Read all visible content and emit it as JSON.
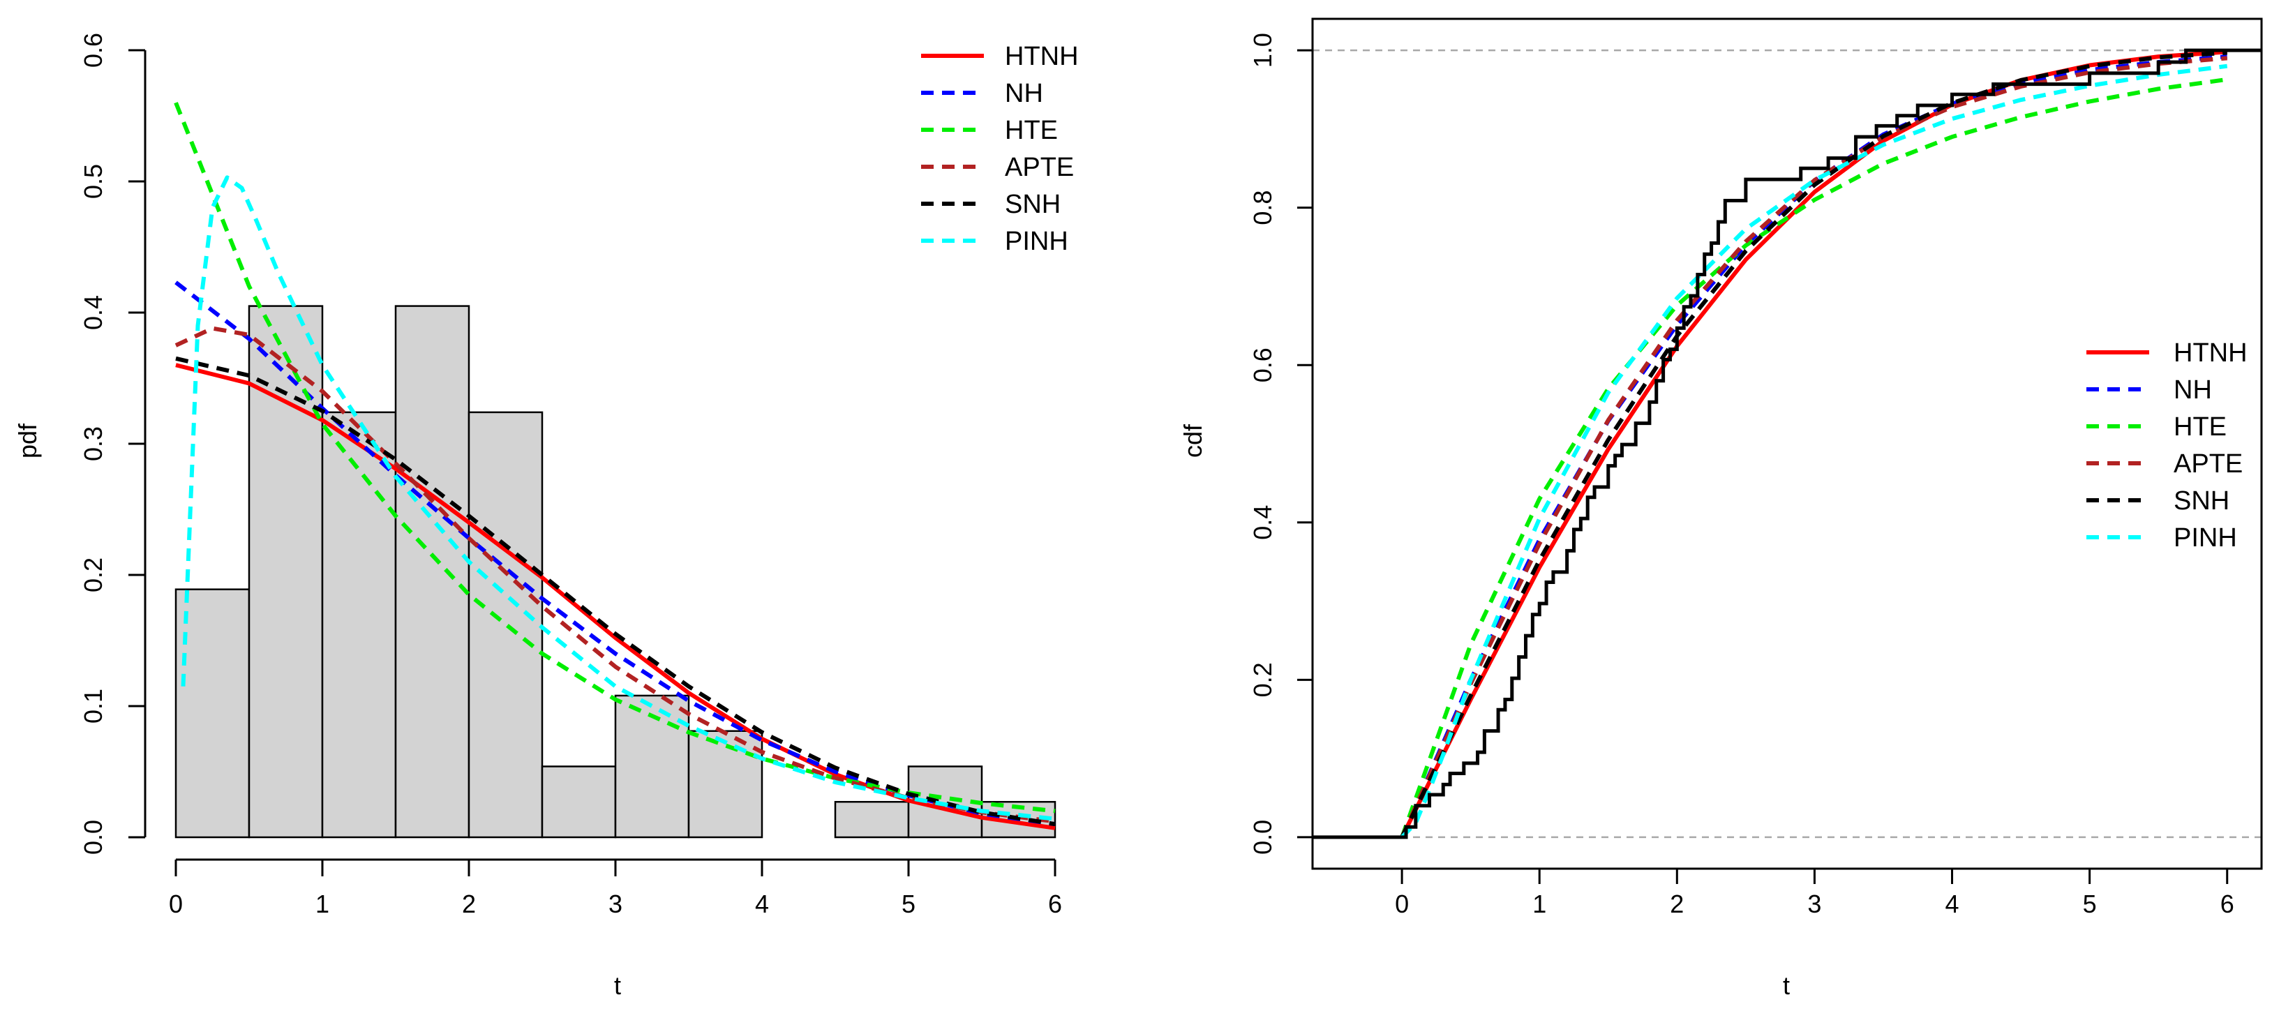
{
  "chart_data": [
    {
      "type": "bar",
      "panel": "pdf",
      "title": "",
      "xlabel": "t",
      "ylabel": "pdf",
      "xlim": [
        0,
        6
      ],
      "ylim": [
        0,
        0.6
      ],
      "x_ticks": [
        "0",
        "1",
        "2",
        "3",
        "4",
        "5",
        "6"
      ],
      "y_ticks": [
        "0.0",
        "0.1",
        "0.2",
        "0.3",
        "0.4",
        "0.5",
        "0.6"
      ],
      "grid": false,
      "legend_position": "top-right",
      "histogram": {
        "bin_edges": [
          0,
          0.5,
          1,
          1.5,
          2,
          2.5,
          3,
          3.5,
          4,
          4.5,
          5,
          5.5,
          6
        ],
        "density": [
          0.189,
          0.405,
          0.324,
          0.405,
          0.324,
          0.054,
          0.108,
          0.081,
          0,
          0.027,
          0.054,
          0.027
        ],
        "fill": "#d3d3d3"
      },
      "series": [
        {
          "name": "HTNH",
          "color": "#ff0000",
          "dash": "solid",
          "x": [
            0,
            0.5,
            1,
            1.5,
            2,
            2.5,
            3,
            3.5,
            4,
            4.5,
            5,
            5.5,
            6
          ],
          "y": [
            0.36,
            0.346,
            0.318,
            0.281,
            0.24,
            0.198,
            0.152,
            0.11,
            0.075,
            0.048,
            0.028,
            0.015,
            0.007
          ]
        },
        {
          "name": "NH",
          "color": "#0000ff",
          "dash": "dashed",
          "x": [
            0,
            0.5,
            1,
            1.5,
            2,
            2.5,
            3,
            3.5,
            4,
            4.5,
            5,
            5.5,
            6
          ],
          "y": [
            0.423,
            0.38,
            0.327,
            0.276,
            0.228,
            0.182,
            0.14,
            0.104,
            0.074,
            0.05,
            0.032,
            0.018,
            0.01
          ]
        },
        {
          "name": "HTE",
          "color": "#00ee00",
          "dash": "dashed",
          "x": [
            0,
            0.5,
            1,
            1.5,
            2,
            2.5,
            3,
            3.5,
            4,
            4.5,
            5,
            5.5,
            6
          ],
          "y": [
            0.56,
            0.42,
            0.315,
            0.245,
            0.185,
            0.14,
            0.105,
            0.08,
            0.06,
            0.045,
            0.034,
            0.026,
            0.02
          ]
        },
        {
          "name": "APTE",
          "color": "#b22222",
          "dash": "dashed",
          "x": [
            0,
            0.25,
            0.5,
            1,
            1.5,
            2,
            2.5,
            3,
            3.5,
            4,
            4.5,
            5,
            5.5,
            6
          ],
          "y": [
            0.375,
            0.388,
            0.383,
            0.34,
            0.285,
            0.228,
            0.176,
            0.13,
            0.094,
            0.065,
            0.045,
            0.03,
            0.019,
            0.012
          ]
        },
        {
          "name": "SNH",
          "color": "#000000",
          "dash": "dashed",
          "x": [
            0,
            0.5,
            1,
            1.5,
            2,
            2.5,
            3,
            3.5,
            4,
            4.5,
            5,
            5.5,
            6
          ],
          "y": [
            0.365,
            0.352,
            0.325,
            0.288,
            0.245,
            0.2,
            0.155,
            0.115,
            0.08,
            0.053,
            0.033,
            0.019,
            0.01
          ]
        },
        {
          "name": "PINH",
          "color": "#00ffff",
          "dash": "dashed",
          "x": [
            0.05,
            0.15,
            0.25,
            0.35,
            0.45,
            0.55,
            0.7,
            0.85,
            1,
            1.5,
            2,
            2.5,
            3,
            3.5,
            4,
            4.5,
            5,
            5.5,
            6
          ],
          "y": [
            0.115,
            0.39,
            0.48,
            0.503,
            0.495,
            0.47,
            0.43,
            0.395,
            0.36,
            0.275,
            0.21,
            0.16,
            0.115,
            0.085,
            0.06,
            0.042,
            0.03,
            0.02,
            0.014
          ]
        }
      ]
    },
    {
      "type": "line",
      "panel": "cdf",
      "title": "",
      "xlabel": "t",
      "ylabel": "cdf",
      "xlim": [
        -0.65,
        6.25
      ],
      "ylim": [
        -0.04,
        1.04
      ],
      "x_ticks": [
        "0",
        "1",
        "2",
        "3",
        "4",
        "5",
        "6"
      ],
      "y_ticks": [
        "0.0",
        "0.2",
        "0.4",
        "0.6",
        "0.8",
        "1.0"
      ],
      "grid": false,
      "reference_lines": [
        0,
        1
      ],
      "legend_position": "right",
      "ecdf": {
        "x": [
          0.03,
          0.1,
          0.2,
          0.3,
          0.35,
          0.45,
          0.55,
          0.6,
          0.7,
          0.75,
          0.8,
          0.85,
          0.9,
          0.95,
          1.0,
          1.05,
          1.1,
          1.2,
          1.25,
          1.3,
          1.35,
          1.4,
          1.5,
          1.55,
          1.6,
          1.7,
          1.8,
          1.85,
          1.9,
          1.95,
          2.0,
          2.05,
          2.1,
          2.15,
          2.2,
          2.25,
          2.3,
          2.35,
          2.5,
          2.9,
          3.1,
          3.3,
          3.45,
          3.6,
          3.75,
          3.85,
          4.0,
          4.3,
          4.6,
          5.0,
          5.5,
          5.7
        ],
        "y": [
          0.013,
          0.04,
          0.054,
          0.067,
          0.081,
          0.094,
          0.108,
          0.135,
          0.162,
          0.175,
          0.202,
          0.229,
          0.256,
          0.283,
          0.297,
          0.324,
          0.337,
          0.364,
          0.391,
          0.405,
          0.432,
          0.445,
          0.472,
          0.485,
          0.499,
          0.526,
          0.553,
          0.58,
          0.607,
          0.62,
          0.647,
          0.674,
          0.688,
          0.715,
          0.741,
          0.755,
          0.782,
          0.809,
          0.836,
          0.85,
          0.863,
          0.89,
          0.904,
          0.917,
          0.93,
          0.93,
          0.944,
          0.957,
          0.957,
          0.971,
          0.985,
          1.0
        ]
      },
      "series": [
        {
          "name": "HTNH",
          "color": "#ff0000",
          "dash": "solid",
          "x": [
            0,
            0.5,
            1,
            1.5,
            2,
            2.5,
            3,
            3.5,
            4,
            4.5,
            5,
            5.5,
            6
          ],
          "y": [
            0,
            0.175,
            0.343,
            0.493,
            0.624,
            0.734,
            0.82,
            0.885,
            0.931,
            0.962,
            0.981,
            0.992,
            0.998
          ]
        },
        {
          "name": "NH",
          "color": "#0000ff",
          "dash": "dashed",
          "x": [
            0,
            0.5,
            1,
            1.5,
            2,
            2.5,
            3,
            3.5,
            4,
            4.5,
            5,
            5.5,
            6
          ],
          "y": [
            0,
            0.2,
            0.378,
            0.529,
            0.651,
            0.753,
            0.834,
            0.893,
            0.932,
            0.958,
            0.975,
            0.985,
            0.992
          ]
        },
        {
          "name": "HTE",
          "color": "#00ee00",
          "dash": "dashed",
          "x": [
            0,
            0.5,
            1,
            1.5,
            2,
            2.5,
            3,
            3.5,
            4,
            4.5,
            5,
            5.5,
            6
          ],
          "y": [
            0,
            0.245,
            0.43,
            0.57,
            0.676,
            0.752,
            0.81,
            0.856,
            0.89,
            0.915,
            0.935,
            0.951,
            0.963
          ]
        },
        {
          "name": "APTE",
          "color": "#b22222",
          "dash": "dashed",
          "x": [
            0,
            0.5,
            1,
            1.5,
            2,
            2.5,
            3,
            3.5,
            4,
            4.5,
            5,
            5.5,
            6
          ],
          "y": [
            0,
            0.195,
            0.373,
            0.53,
            0.657,
            0.757,
            0.835,
            0.89,
            0.928,
            0.954,
            0.972,
            0.983,
            0.99
          ]
        },
        {
          "name": "SNH",
          "color": "#000000",
          "dash": "dashed",
          "x": [
            0,
            0.5,
            1,
            1.5,
            2,
            2.5,
            3,
            3.5,
            4,
            4.5,
            5,
            5.5,
            6
          ],
          "y": [
            0,
            0.18,
            0.352,
            0.505,
            0.637,
            0.745,
            0.829,
            0.891,
            0.933,
            0.962,
            0.98,
            0.991,
            0.997
          ]
        },
        {
          "name": "PINH",
          "color": "#00ffff",
          "dash": "dashed",
          "x": [
            0,
            0.1,
            0.2,
            0.3,
            0.5,
            1,
            1.5,
            2,
            2.5,
            3,
            3.5,
            4,
            4.5,
            5,
            5.5,
            6
          ],
          "y": [
            0,
            0.018,
            0.06,
            0.105,
            0.2,
            0.405,
            0.565,
            0.685,
            0.773,
            0.835,
            0.88,
            0.913,
            0.937,
            0.955,
            0.969,
            0.98
          ]
        }
      ]
    }
  ]
}
